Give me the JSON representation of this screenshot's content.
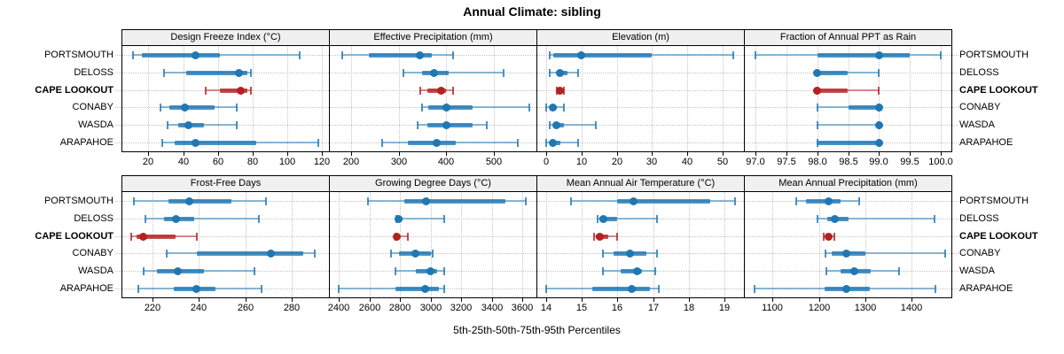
{
  "title": "Annual Climate: sibling",
  "footer": "5th-25th-50th-75th-95th Percentiles",
  "colors": {
    "normal": "#1f77b4",
    "highlight": "#b22222",
    "header_bg": "#f0f0f0",
    "grid": "#c4c4c4",
    "border": "#000000"
  },
  "chart_data": {
    "type": "dot-interval-trellis",
    "percentiles": [
      5,
      25,
      50,
      75,
      95
    ],
    "stations": [
      "PORTSMOUTH",
      "DELOSS",
      "CAPE LOOKOUT",
      "CONABY",
      "WASDA",
      "ARAPAHOE"
    ],
    "highlight_station": "CAPE LOOKOUT",
    "legend_note": "values per station are [5th, 25th, 50th, 75th, 95th] percentiles",
    "panels": [
      {
        "title": "Design Freeze Index (°C)",
        "xlim": [
          5,
          124
        ],
        "ticks": [
          20,
          40,
          60,
          80,
          100,
          120
        ],
        "tick_labels": [
          "20",
          "40",
          "60",
          "80",
          "100",
          "120"
        ],
        "series": [
          [
            11,
            16,
            47,
            61,
            107
          ],
          [
            29,
            42,
            72,
            77,
            79
          ],
          [
            53,
            61,
            73,
            77,
            79
          ],
          [
            27,
            32,
            41,
            58,
            71
          ],
          [
            31,
            37,
            43,
            52,
            71
          ],
          [
            28,
            35,
            47,
            82,
            118
          ]
        ]
      },
      {
        "title": "Effective Precipitation (mm)",
        "xlim": [
          155,
          590
        ],
        "ticks": [
          200,
          300,
          400,
          500
        ],
        "tick_labels": [
          "200",
          "300",
          "400",
          "500"
        ],
        "series": [
          [
            182,
            238,
            345,
            370,
            415
          ],
          [
            310,
            350,
            375,
            405,
            520
          ],
          [
            345,
            360,
            390,
            400,
            415
          ],
          [
            350,
            362,
            400,
            455,
            575
          ],
          [
            340,
            360,
            400,
            455,
            485
          ],
          [
            265,
            320,
            380,
            420,
            550
          ]
        ]
      },
      {
        "title": "Elevation (m)",
        "xlim": [
          -2.5,
          56
        ],
        "ticks": [
          0,
          10,
          20,
          30,
          40,
          50
        ],
        "tick_labels": [
          "0",
          "10",
          "20",
          "30",
          "40",
          "50"
        ],
        "series": [
          [
            1,
            2,
            10,
            30,
            53
          ],
          [
            1,
            3,
            4,
            6,
            9
          ],
          [
            3,
            4,
            4,
            5,
            5
          ],
          [
            0,
            1,
            2,
            3,
            5
          ],
          [
            1,
            2,
            3,
            5,
            14
          ],
          [
            0,
            1,
            2,
            4,
            9
          ]
        ]
      },
      {
        "title": "Fraction of Annual PPT as Rain",
        "xlim": [
          96.82,
          100.18
        ],
        "ticks": [
          97.0,
          97.5,
          98.0,
          98.5,
          99.0,
          99.5,
          100.0
        ],
        "tick_labels": [
          "97.0",
          "97.5",
          "98.0",
          "98.5",
          "99.0",
          "99.5",
          "100.0"
        ],
        "series": [
          [
            97,
            98,
            99,
            99.5,
            100
          ],
          [
            98,
            98,
            98,
            98.5,
            99
          ],
          [
            98,
            98,
            98,
            98.5,
            99
          ],
          [
            98,
            98.5,
            99,
            99,
            99
          ],
          [
            98,
            99,
            99,
            99,
            99
          ],
          [
            98,
            98,
            99,
            99,
            99
          ]
        ]
      },
      {
        "title": "Frost-Free Days",
        "xlim": [
          207,
          296
        ],
        "ticks": [
          220,
          240,
          260,
          280
        ],
        "tick_labels": [
          "220",
          "240",
          "260",
          "280"
        ],
        "series": [
          [
            212,
            227,
            236,
            254,
            269
          ],
          [
            217,
            225,
            230,
            238,
            266
          ],
          [
            211,
            213,
            216,
            230,
            239
          ],
          [
            226,
            239,
            271,
            285,
            290
          ],
          [
            216,
            222,
            231,
            242,
            264
          ],
          [
            214,
            229,
            239,
            247,
            267
          ]
        ]
      },
      {
        "title": "Growing Degree Days (°C)",
        "xlim": [
          2340,
          3690
        ],
        "ticks": [
          2400,
          2600,
          2800,
          3000,
          3200,
          3400,
          3600
        ],
        "tick_labels": [
          "2400",
          "2600",
          "2800",
          "3000",
          "3200",
          "3400",
          "3600"
        ],
        "series": [
          [
            2590,
            2825,
            2970,
            3490,
            3620
          ],
          [
            2775,
            2780,
            2790,
            2815,
            3085
          ],
          [
            2770,
            2775,
            2780,
            2800,
            2850
          ],
          [
            2740,
            2790,
            2900,
            3000,
            3010
          ],
          [
            2770,
            2900,
            3000,
            3040,
            3090
          ],
          [
            2400,
            2770,
            2960,
            3050,
            3090
          ]
        ]
      },
      {
        "title": "Mean Annual Air Temperature (°C)",
        "xlim": [
          13.75,
          19.55
        ],
        "ticks": [
          14,
          15,
          16,
          17,
          18,
          19
        ],
        "tick_labels": [
          "14",
          "15",
          "16",
          "17",
          "18",
          "19"
        ],
        "series": [
          [
            14.7,
            16.0,
            16.45,
            18.6,
            19.3
          ],
          [
            15.45,
            15.5,
            15.6,
            16.0,
            17.1
          ],
          [
            15.35,
            15.4,
            15.5,
            15.75,
            16.0
          ],
          [
            15.6,
            15.9,
            16.35,
            16.8,
            17.1
          ],
          [
            15.6,
            16.1,
            16.55,
            16.7,
            17.05
          ],
          [
            14.0,
            15.3,
            16.4,
            16.9,
            17.15
          ]
        ]
      },
      {
        "title": "Mean Annual Precipitation (mm)",
        "xlim": [
          1040,
          1485
        ],
        "ticks": [
          1100,
          1200,
          1300,
          1400
        ],
        "tick_labels": [
          "1100",
          "1200",
          "1300",
          "1400"
        ],
        "series": [
          [
            1150,
            1172,
            1220,
            1247,
            1286
          ],
          [
            1196,
            1218,
            1233,
            1263,
            1449
          ],
          [
            1210,
            1214,
            1221,
            1228,
            1233
          ],
          [
            1213,
            1227,
            1258,
            1300,
            1471
          ],
          [
            1216,
            1247,
            1275,
            1312,
            1373
          ],
          [
            1061,
            1212,
            1258,
            1310,
            1451
          ]
        ]
      }
    ]
  }
}
